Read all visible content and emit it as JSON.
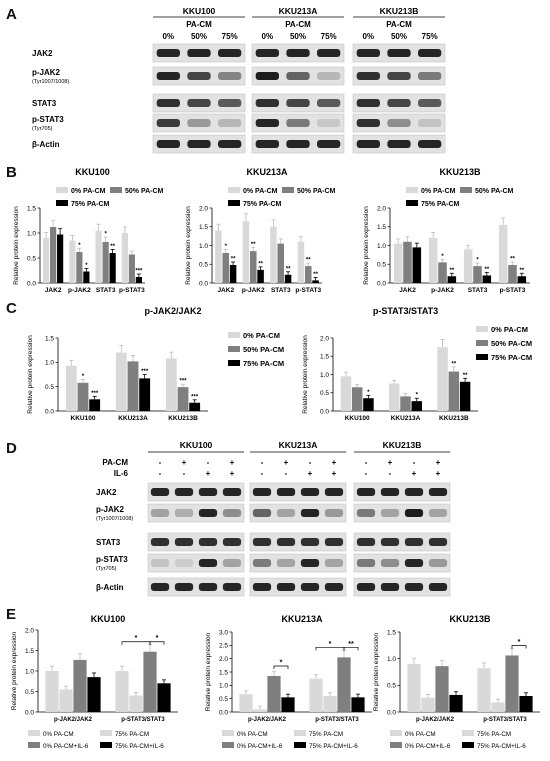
{
  "labels": {
    "A": "A",
    "B": "B",
    "C": "C",
    "D": "D",
    "E": "E"
  },
  "blotA": {
    "cells": [
      "KKU100",
      "KKU213A",
      "KKU213B"
    ],
    "treatment": "PA-CM",
    "conc": [
      "0%",
      "50%",
      "75%"
    ],
    "proteins": [
      "JAK2",
      "p-JAK2",
      "STAT3",
      "p-STAT3",
      "β-Actin"
    ],
    "sub": [
      "",
      "(Tyr1007/1008)",
      "",
      "(Tyr705)",
      ""
    ]
  },
  "blotD": {
    "cells": [
      "KKU100",
      "KKU213A",
      "KKU213B"
    ],
    "row1": "PA-CM",
    "row2": "IL-6",
    "pacm": [
      "-",
      "+",
      "-",
      "+"
    ],
    "il6": [
      "-",
      "-",
      "+",
      "+"
    ],
    "proteins": [
      "JAK2",
      "p-JAK2",
      "STAT3",
      "p-STAT3",
      "β-Actin"
    ],
    "sub": [
      "",
      "(Tyr1007/1008)",
      "",
      "(Tyr705)",
      ""
    ]
  },
  "chart_data": [
    {
      "type": "bar",
      "panel": "B",
      "title": "KKU100",
      "ylabel": "Relative protein expression",
      "ylim": [
        0,
        1.5
      ],
      "ticks": [
        "0.0",
        "0.5",
        "1.0",
        "1.5"
      ],
      "categories": [
        "JAK2",
        "p-JAK2",
        "STAT3",
        "p-STAT3"
      ],
      "series": [
        {
          "name": "0% PA-CM",
          "color": "#d9d9d9",
          "values": [
            0.9,
            0.85,
            1.05,
            1.0
          ]
        },
        {
          "name": "50% PA-CM",
          "color": "#7f7f7f",
          "values": [
            1.12,
            0.62,
            0.82,
            0.57
          ]
        },
        {
          "name": "75% PA-CM",
          "color": "#000000",
          "values": [
            0.97,
            0.23,
            0.6,
            0.12
          ]
        }
      ],
      "stars": [
        [
          "",
          "",
          ""
        ],
        [
          "",
          "*",
          "*"
        ],
        [
          "",
          "*",
          "**"
        ],
        [
          "",
          "",
          "***"
        ]
      ]
    },
    {
      "type": "bar",
      "panel": "B",
      "title": "KKU213A",
      "ylabel": "Relative protein expression",
      "ylim": [
        0,
        2.0
      ],
      "ticks": [
        "0.0",
        "0.5",
        "1.0",
        "1.5",
        "2.0"
      ],
      "categories": [
        "JAK2",
        "p-JAK2",
        "STAT3",
        "p-STAT3"
      ],
      "series": [
        {
          "name": "0% PA-CM",
          "color": "#d9d9d9",
          "values": [
            1.4,
            1.65,
            1.5,
            1.1
          ]
        },
        {
          "name": "50% PA-CM",
          "color": "#7f7f7f",
          "values": [
            0.8,
            0.85,
            1.05,
            0.45
          ]
        },
        {
          "name": "75% PA-CM",
          "color": "#000000",
          "values": [
            0.48,
            0.35,
            0.22,
            0.07
          ]
        }
      ],
      "stars": [
        [
          "",
          "*",
          "**"
        ],
        [
          "",
          "**",
          "**"
        ],
        [
          "",
          "",
          "**"
        ],
        [
          "",
          "**",
          "**"
        ]
      ]
    },
    {
      "type": "bar",
      "panel": "B",
      "title": "KKU213B",
      "ylabel": "Relative protein expression",
      "ylim": [
        0,
        2.0
      ],
      "ticks": [
        "0.0",
        "0.5",
        "1.0",
        "1.5",
        "2.0"
      ],
      "categories": [
        "JAK2",
        "p-JAK2",
        "STAT3",
        "p-STAT3"
      ],
      "series": [
        {
          "name": "0% PA-CM",
          "color": "#d9d9d9",
          "values": [
            1.05,
            1.2,
            0.9,
            1.55
          ]
        },
        {
          "name": "50% PA-CM",
          "color": "#7f7f7f",
          "values": [
            1.1,
            0.55,
            0.45,
            0.48
          ]
        },
        {
          "name": "75% PA-CM",
          "color": "#000000",
          "values": [
            0.95,
            0.18,
            0.2,
            0.18
          ]
        }
      ],
      "stars": [
        [
          "",
          "",
          ""
        ],
        [
          "",
          "*",
          "**"
        ],
        [
          "",
          "*",
          "**"
        ],
        [
          "",
          "**",
          "**"
        ]
      ]
    },
    {
      "type": "bar",
      "panel": "C",
      "title": "p-JAK2/JAK2",
      "ylabel": "Relative protein expression",
      "ylim": [
        0,
        1.5
      ],
      "ticks": [
        "0.0",
        "0.5",
        "1.0",
        "1.5"
      ],
      "categories": [
        "KKU100",
        "KKU213A",
        "KKU213B"
      ],
      "series": [
        {
          "name": "0% PA-CM",
          "color": "#d9d9d9",
          "values": [
            0.93,
            1.2,
            1.08
          ]
        },
        {
          "name": "50% PA-CM",
          "color": "#7f7f7f",
          "values": [
            0.58,
            1.02,
            0.49
          ]
        },
        {
          "name": "75% PA-CM",
          "color": "#000000",
          "values": [
            0.24,
            0.67,
            0.17
          ]
        }
      ],
      "stars": [
        [
          "",
          "*",
          "***"
        ],
        [
          "",
          "",
          "***"
        ],
        [
          "",
          "***",
          "***"
        ]
      ]
    },
    {
      "type": "bar",
      "panel": "C",
      "title": "p-STAT3/STAT3",
      "ylabel": "Relative protein expression",
      "ylim": [
        0,
        2.0
      ],
      "ticks": [
        "0.0",
        "0.5",
        "1.0",
        "1.5",
        "2.0"
      ],
      "categories": [
        "KKU100",
        "KKU213A",
        "KKU213B"
      ],
      "series": [
        {
          "name": "0% PA-CM",
          "color": "#d9d9d9",
          "values": [
            0.95,
            0.75,
            1.75
          ]
        },
        {
          "name": "50% PA-CM",
          "color": "#7f7f7f",
          "values": [
            0.65,
            0.4,
            1.08
          ]
        },
        {
          "name": "75% PA-CM",
          "color": "#000000",
          "values": [
            0.35,
            0.27,
            0.8
          ]
        }
      ],
      "stars": [
        [
          "",
          "",
          "*"
        ],
        [
          "",
          "",
          "*"
        ],
        [
          "",
          "**",
          "**"
        ]
      ]
    },
    {
      "type": "bar",
      "panel": "E",
      "title": "KKU100",
      "ylabel": "Relative protein expression",
      "ylim": [
        0,
        2.0
      ],
      "ticks": [
        "0.0",
        "0.5",
        "1.0",
        "1.5",
        "2.0"
      ],
      "categories": [
        "p-JAK2/JAK2",
        "p-STAT3/STAT3"
      ],
      "series": [
        {
          "name": "0% PA-CM",
          "color": "#d9d9d9",
          "values": [
            1.0,
            1.0
          ]
        },
        {
          "name": "75% PA-CM",
          "color": "#d9d9d9",
          "values": [
            0.55,
            0.4
          ]
        },
        {
          "name": "0% PA-CM+IL-6",
          "color": "#7f7f7f",
          "values": [
            1.27,
            1.47
          ]
        },
        {
          "name": "75% PA-CM+IL-6",
          "color": "#000000",
          "values": [
            0.85,
            0.7
          ]
        }
      ],
      "brackets": [
        {
          "cat": 1,
          "from": 0,
          "to": 2,
          "label": "*"
        },
        {
          "cat": 1,
          "from": 2,
          "to": 3,
          "label": "*"
        }
      ]
    },
    {
      "type": "bar",
      "panel": "E",
      "title": "KKU213A",
      "ylabel": "Relative protein expression",
      "ylim": [
        0,
        3.0
      ],
      "ticks": [
        "0.0",
        "0.5",
        "1.0",
        "1.5",
        "2.0",
        "2.5",
        "3.0"
      ],
      "categories": [
        "p-JAK2/JAK2",
        "p-STAT3/STAT3"
      ],
      "series": [
        {
          "name": "0% PA-CM",
          "color": "#d9d9d9",
          "values": [
            0.67,
            1.25
          ]
        },
        {
          "name": "75% PA-CM",
          "color": "#d9d9d9",
          "values": [
            0.1,
            0.6
          ]
        },
        {
          "name": "0% PA-CM+IL-6",
          "color": "#7f7f7f",
          "values": [
            1.35,
            2.05
          ]
        },
        {
          "name": "75% PA-CM+IL-6",
          "color": "#000000",
          "values": [
            0.55,
            0.55
          ]
        }
      ],
      "brackets": [
        {
          "cat": 0,
          "from": 2,
          "to": 3,
          "label": "*"
        },
        {
          "cat": 1,
          "from": 0,
          "to": 2,
          "label": "*"
        },
        {
          "cat": 1,
          "from": 2,
          "to": 3,
          "label": "**"
        }
      ]
    },
    {
      "type": "bar",
      "panel": "E",
      "title": "KKU213B",
      "ylabel": "Relative protein expression",
      "ylim": [
        0,
        1.5
      ],
      "ticks": [
        "0.0",
        "0.5",
        "1.0",
        "1.5"
      ],
      "categories": [
        "p-JAK2/JAK2",
        "p-STAT3/STAT3"
      ],
      "series": [
        {
          "name": "0% PA-CM",
          "color": "#d9d9d9",
          "values": [
            0.9,
            0.82
          ]
        },
        {
          "name": "75% PA-CM",
          "color": "#d9d9d9",
          "values": [
            0.27,
            0.18
          ]
        },
        {
          "name": "0% PA-CM+IL-6",
          "color": "#7f7f7f",
          "values": [
            0.86,
            1.06
          ]
        },
        {
          "name": "75% PA-CM+IL-6",
          "color": "#000000",
          "values": [
            0.32,
            0.3
          ]
        }
      ],
      "brackets": [
        {
          "cat": 1,
          "from": 2,
          "to": 3,
          "label": "*"
        }
      ]
    }
  ]
}
